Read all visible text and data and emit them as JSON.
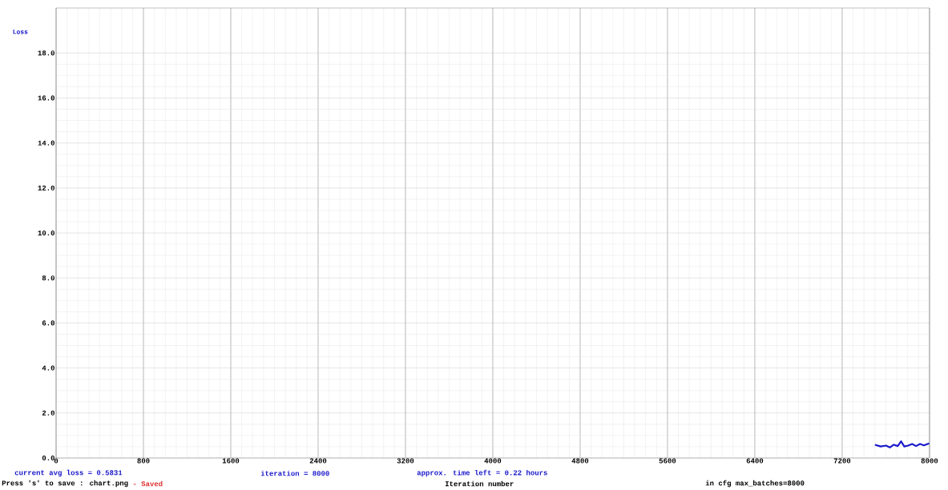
{
  "chart_data": {
    "type": "line",
    "xlabel": "Iteration number",
    "ylabel": "Loss",
    "x": [
      7500,
      7553,
      7601,
      7637,
      7673,
      7709,
      7740,
      7769,
      7805,
      7841,
      7877,
      7913,
      7949,
      7997
    ],
    "series": [
      {
        "color": "#1a1acc",
        "values": [
          0.59,
          0.51,
          0.55,
          0.47,
          0.59,
          0.53,
          0.74,
          0.51,
          0.55,
          0.62,
          0.53,
          0.62,
          0.56,
          0.65
        ]
      }
    ],
    "xlim": [
      0,
      8000
    ],
    "ylim": [
      0,
      20
    ],
    "xticks": [
      0,
      800,
      1600,
      2400,
      3200,
      4000,
      4800,
      5600,
      6400,
      7200,
      8000
    ],
    "yticks": [
      {
        "value": 0,
        "label": "0.0"
      },
      {
        "value": 2,
        "label": "2.0"
      },
      {
        "value": 4,
        "label": "4.0"
      },
      {
        "value": 6,
        "label": "6.0"
      },
      {
        "value": 8,
        "label": "8.0"
      },
      {
        "value": 10,
        "label": "10.0"
      },
      {
        "value": 12,
        "label": "12.0"
      },
      {
        "value": 14,
        "label": "14.0"
      },
      {
        "value": 16,
        "label": "16.0"
      },
      {
        "value": 18,
        "label": "18.0"
      }
    ],
    "grid": true,
    "marker": "none",
    "line_style": "solid",
    "annotations": [
      "current avg loss = 0.5831",
      "iteration = 8000",
      "approx. time left = 0.22 hours",
      "Press 's' to save : chart.png",
      "- Saved",
      "in cfg max_batches=8000"
    ]
  }
}
